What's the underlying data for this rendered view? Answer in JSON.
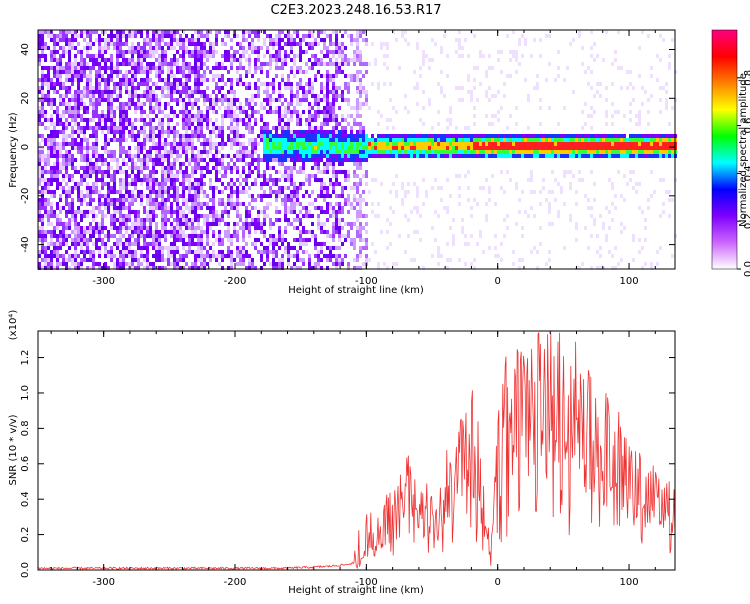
{
  "page": {
    "title": "C2E3.2023.248.16.53.R17"
  },
  "spectrogram": {
    "xlabel": "Height of straight line (km)",
    "ylabel": "Frequency (Hz)",
    "xlim": [
      -350,
      135
    ],
    "ylim": [
      -50,
      48
    ],
    "xticks": [
      -300,
      -200,
      -100,
      0,
      100
    ],
    "xtick_labels": [
      "-300",
      "-200",
      "-100",
      "0",
      "100"
    ],
    "yticks": [
      -40,
      -20,
      0,
      20,
      40
    ],
    "ytick_labels": [
      "-40",
      "-20",
      "0",
      "20",
      "40"
    ]
  },
  "colorbar": {
    "label": "Normalized spectral amplitude",
    "ticks": [
      0.0,
      0.2,
      0.4,
      0.6,
      0.8
    ],
    "tick_labels": [
      "0.0",
      "0.2",
      "0.4",
      "0.6",
      "0.8"
    ],
    "colors": [
      "#ffffff",
      "#cc66ff",
      "#7f00ff",
      "#0000ff",
      "#00ffff",
      "#00ff00",
      "#ffff00",
      "#ff8000",
      "#ff0000",
      "#ff0080"
    ]
  },
  "chart_data": {
    "type": "line",
    "xlabel": "Height of straight line (km)",
    "ylabel": "SNR (10 * v/v)",
    "yscale_label": "(x10⁴)",
    "xlim": [
      -350,
      135
    ],
    "ylim": [
      0,
      1.35
    ],
    "xticks": [
      -300,
      -200,
      -100,
      0,
      100
    ],
    "xtick_labels": [
      "-300",
      "-200",
      "-100",
      "0",
      "100"
    ],
    "yticks": [
      0.0,
      0.2,
      0.4,
      0.6,
      0.8,
      1.0,
      1.2
    ],
    "ytick_labels": [
      "0.0",
      "0.2",
      "0.4",
      "0.6",
      "0.8",
      "1.0",
      "1.2"
    ],
    "color": "#ee3333",
    "series": [
      {
        "x": [
          -350,
          -300,
          -250,
          -200,
          -160,
          -130,
          -115,
          -105,
          -100,
          -95,
          -90,
          -85,
          -80,
          -75,
          -70,
          -65,
          -60,
          -55,
          -50,
          -45,
          -40,
          -35,
          -30,
          -25,
          -20,
          -15,
          -10,
          -5,
          0,
          5,
          10,
          15,
          20,
          25,
          30,
          35,
          40,
          45,
          50,
          55,
          60,
          65,
          70,
          75,
          80,
          85,
          90,
          95,
          100,
          105,
          110,
          115,
          120,
          125,
          130,
          135
        ],
        "y": [
          0.01,
          0.01,
          0.01,
          0.01,
          0.01,
          0.02,
          0.03,
          0.05,
          0.12,
          0.2,
          0.15,
          0.3,
          0.35,
          0.45,
          0.5,
          0.42,
          0.3,
          0.35,
          0.38,
          0.3,
          0.45,
          0.55,
          0.6,
          0.75,
          0.8,
          0.6,
          0.3,
          0.1,
          0.65,
          0.85,
          0.9,
          0.9,
          0.92,
          0.92,
          0.95,
          0.96,
          0.98,
          0.98,
          0.97,
          0.95,
          0.9,
          0.85,
          0.78,
          0.72,
          0.7,
          0.68,
          0.65,
          0.6,
          0.55,
          0.5,
          0.48,
          0.45,
          0.42,
          0.4,
          0.38,
          0.36
        ]
      }
    ]
  }
}
